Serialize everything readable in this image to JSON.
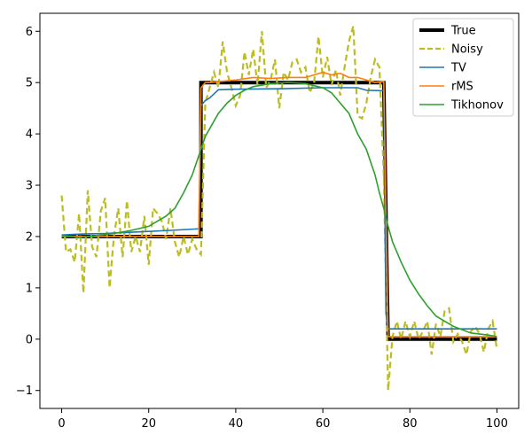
{
  "chart_data": {
    "type": "line",
    "title": "",
    "xlabel": "",
    "ylabel": "",
    "xlim": [
      -5,
      105
    ],
    "ylim": [
      -1.35,
      6.35
    ],
    "xticks": [
      0,
      20,
      40,
      60,
      80,
      100
    ],
    "yticks": [
      -1,
      0,
      1,
      2,
      3,
      4,
      5,
      6
    ],
    "grid": false,
    "legend_position": "top-right",
    "series": [
      {
        "name": "True",
        "color": "#000000",
        "style": "solid-thick",
        "x": [
          0,
          32,
          32,
          74,
          75,
          100
        ],
        "y": [
          2,
          2,
          5,
          5,
          0,
          0
        ]
      },
      {
        "name": "Noisy",
        "color": "#bcbd22",
        "style": "dashed",
        "x": [
          0,
          1,
          2,
          3,
          4,
          5,
          6,
          7,
          8,
          9,
          10,
          11,
          12,
          13,
          14,
          15,
          16,
          17,
          18,
          19,
          20,
          21,
          22,
          23,
          24,
          25,
          26,
          27,
          28,
          29,
          30,
          31,
          32,
          33,
          34,
          35,
          36,
          37,
          38,
          39,
          40,
          41,
          42,
          43,
          44,
          45,
          46,
          47,
          48,
          49,
          50,
          51,
          52,
          53,
          54,
          55,
          56,
          57,
          58,
          59,
          60,
          61,
          62,
          63,
          64,
          65,
          66,
          67,
          68,
          69,
          70,
          71,
          72,
          73,
          74,
          75,
          76,
          77,
          78,
          79,
          80,
          81,
          82,
          83,
          84,
          85,
          86,
          87,
          88,
          89,
          90,
          91,
          92,
          93,
          94,
          95,
          96,
          97,
          98,
          99,
          100
        ],
        "y": [
          2.8,
          1.7,
          1.75,
          1.5,
          2.45,
          0.9,
          2.9,
          1.8,
          1.6,
          2.5,
          2.75,
          1.0,
          2.0,
          2.55,
          1.6,
          2.7,
          1.7,
          2.0,
          1.7,
          2.4,
          1.45,
          2.55,
          2.45,
          2.3,
          1.95,
          2.55,
          1.9,
          1.6,
          2.0,
          1.65,
          1.95,
          1.75,
          1.65,
          4.6,
          4.9,
          5.2,
          4.9,
          5.8,
          5.2,
          4.9,
          4.55,
          4.75,
          5.6,
          5.15,
          5.65,
          4.95,
          6.0,
          4.9,
          5.05,
          5.45,
          4.5,
          5.2,
          5.05,
          5.4,
          5.45,
          5.2,
          5.3,
          4.8,
          5.0,
          5.9,
          5.1,
          5.5,
          4.95,
          5.25,
          4.75,
          5.3,
          5.8,
          6.1,
          4.35,
          4.3,
          4.6,
          5.1,
          5.45,
          5.3,
          3.2,
          -1.0,
          0.05,
          0.35,
          0.0,
          0.35,
          0.05,
          0.35,
          0.0,
          0.15,
          0.35,
          -0.3,
          0.3,
          0.05,
          0.55,
          0.6,
          -0.05,
          0.1,
          -0.05,
          -0.3,
          0.15,
          0.25,
          0.1,
          -0.25,
          0.2,
          0.35,
          -0.2
        ]
      },
      {
        "name": "TV",
        "color": "#1f77b4",
        "style": "solid",
        "x": [
          0,
          5,
          10,
          15,
          20,
          25,
          31.5,
          32,
          33,
          34,
          35,
          36,
          40,
          50,
          60,
          68,
          70,
          74,
          74.5,
          75,
          76,
          100
        ],
        "y": [
          2.03,
          2.05,
          2.06,
          2.08,
          2.1,
          2.12,
          2.15,
          4.55,
          4.65,
          4.7,
          4.78,
          4.86,
          4.87,
          4.88,
          4.9,
          4.9,
          4.85,
          4.84,
          0.5,
          0.2,
          0.2,
          0.2
        ]
      },
      {
        "name": "rMS",
        "color": "#ff7f0e",
        "style": "solid",
        "x": [
          0,
          5,
          10,
          15,
          20,
          25,
          31.5,
          32,
          33,
          34,
          36,
          40,
          44,
          48,
          52,
          56,
          60,
          62,
          64,
          66,
          68,
          70,
          72,
          74,
          74.5,
          75,
          76,
          80,
          100
        ],
        "y": [
          2.0,
          2.0,
          2.0,
          2.0,
          2.0,
          2.0,
          2.0,
          4.9,
          5.0,
          5.0,
          5.02,
          5.05,
          5.1,
          5.08,
          5.1,
          5.1,
          5.2,
          5.15,
          5.18,
          5.1,
          5.1,
          5.05,
          5.0,
          5.02,
          2.5,
          0.05,
          0.05,
          0.05,
          0.05
        ]
      },
      {
        "name": "Tikhonov",
        "color": "#2ca02c",
        "style": "solid",
        "x": [
          0,
          4,
          8,
          12,
          16,
          20,
          24,
          26,
          28,
          30,
          31,
          32,
          33,
          34,
          36,
          38,
          40,
          42,
          44,
          48,
          52,
          56,
          60,
          62,
          64,
          66,
          68,
          70,
          71,
          72,
          73,
          74,
          75,
          76,
          78,
          80,
          82,
          84,
          86,
          88,
          90,
          94,
          98,
          100
        ],
        "y": [
          2.02,
          1.98,
          2.02,
          2.06,
          2.12,
          2.2,
          2.4,
          2.55,
          2.85,
          3.2,
          3.45,
          3.7,
          3.95,
          4.1,
          4.4,
          4.6,
          4.75,
          4.85,
          4.92,
          4.98,
          5.0,
          4.98,
          4.9,
          4.8,
          4.6,
          4.4,
          4.0,
          3.7,
          3.45,
          3.2,
          2.85,
          2.55,
          2.2,
          1.9,
          1.5,
          1.15,
          0.88,
          0.65,
          0.45,
          0.35,
          0.25,
          0.12,
          0.08,
          0.05
        ]
      }
    ]
  }
}
